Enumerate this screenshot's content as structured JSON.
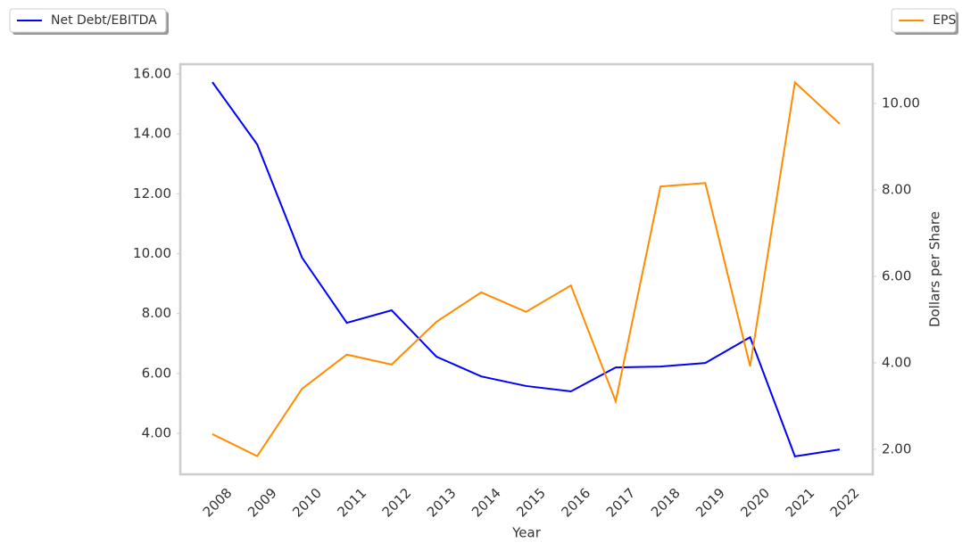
{
  "chart_data": {
    "type": "line",
    "x_label": "Year",
    "y2_label": "Dollars per Share",
    "categories": [
      "2008",
      "2009",
      "2010",
      "2011",
      "2012",
      "2013",
      "2014",
      "2015",
      "2016",
      "2017",
      "2018",
      "2019",
      "2020",
      "2021",
      "2022"
    ],
    "series": [
      {
        "name": "Net Debt/EBITDA",
        "color": "#0000ff",
        "axis": "y",
        "legend": "upper left",
        "values": [
          15.73,
          13.65,
          9.87,
          7.69,
          8.11,
          6.56,
          5.9,
          5.58,
          5.4,
          6.2,
          6.23,
          6.35,
          7.21,
          3.23,
          3.46
        ]
      },
      {
        "name": "EPS",
        "color": "#ff8c00",
        "axis": "y2",
        "legend": "upper right",
        "values": [
          2.35,
          1.84,
          3.4,
          4.19,
          3.96,
          4.95,
          5.63,
          5.18,
          5.79,
          3.11,
          8.08,
          8.16,
          3.92,
          10.49,
          9.53
        ]
      }
    ],
    "ylim": [
      2.63,
      16.33
    ],
    "yticks": [
      {
        "value": 4,
        "label": "4.00"
      },
      {
        "value": 6,
        "label": "6.00"
      },
      {
        "value": 8,
        "label": "8.00"
      },
      {
        "value": 10,
        "label": "10.00"
      },
      {
        "value": 12,
        "label": "12.00"
      },
      {
        "value": 14,
        "label": "14.00"
      },
      {
        "value": 16,
        "label": "16.00"
      }
    ],
    "y2lim": [
      1.42,
      10.91
    ],
    "y2ticks": [
      {
        "value": 2,
        "label": "2.00"
      },
      {
        "value": 4,
        "label": "4.00"
      },
      {
        "value": 6,
        "label": "6.00"
      },
      {
        "value": 8,
        "label": "8.00"
      },
      {
        "value": 10,
        "label": "10.00"
      }
    ],
    "grid": false
  }
}
